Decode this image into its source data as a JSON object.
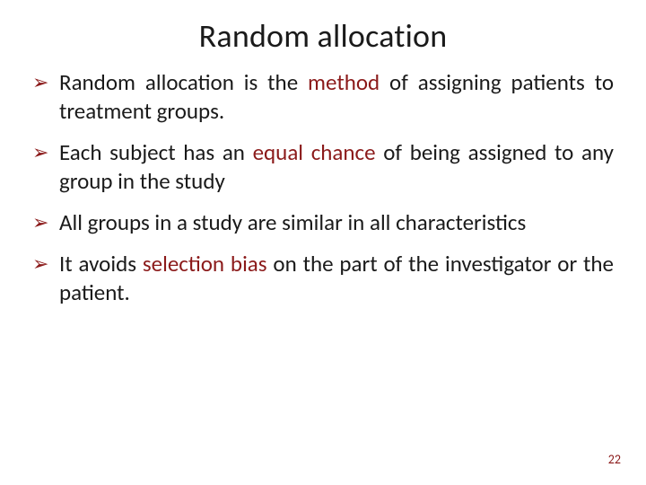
{
  "title": "Random allocation",
  "bullets": [
    {
      "pre": "Random allocation is the ",
      "emph": "method",
      "post": " of assigning patients to treatment groups."
    },
    {
      "pre": "Each subject has an ",
      "emph": "equal chance",
      "post": " of being assigned to any group in the study"
    },
    {
      "pre": "All groups in a study are similar in all characteristics",
      "emph": "",
      "post": ""
    },
    {
      "pre": "It avoids ",
      "emph": "selection bias",
      "post": " on the part of the investigator or the patient."
    }
  ],
  "page_number": "22",
  "colors": {
    "emph": "#8b1a1a",
    "text": "#1a1a1a",
    "bullet_marker": "#8b1a1a",
    "pagenum": "#8b1a1a",
    "background": "#ffffff"
  },
  "typography": {
    "title_fontsize": 36,
    "body_fontsize": 25,
    "pagenum_fontsize": 14,
    "font_family": "Calibri"
  }
}
